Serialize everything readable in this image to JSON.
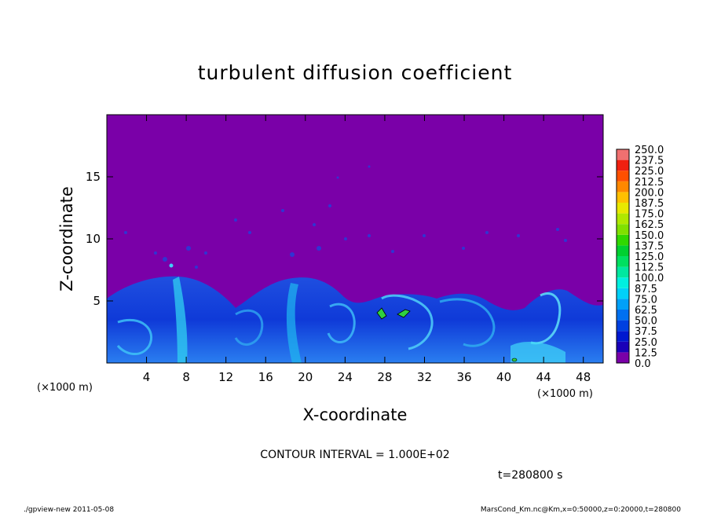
{
  "chart_data": {
    "type": "heatmap",
    "title": "turbulent diffusion coefficient",
    "xlabel": "X-coordinate",
    "ylabel": "Z-coordinate",
    "x_unit": "(×1000 m)",
    "y_unit": "(×1000 m)",
    "xlim": [
      0,
      50
    ],
    "ylim": [
      0,
      20
    ],
    "x_ticks": [
      4,
      8,
      12,
      16,
      20,
      24,
      28,
      32,
      36,
      40,
      44,
      48
    ],
    "y_ticks": [
      5,
      10,
      15
    ],
    "colorbar": {
      "levels": [
        "0.0",
        "12.5",
        "25.0",
        "37.5",
        "50.0",
        "62.5",
        "75.0",
        "87.5",
        "100.0",
        "112.5",
        "125.0",
        "137.5",
        "150.0",
        "162.5",
        "175.0",
        "187.5",
        "200.0",
        "212.5",
        "225.0",
        "237.5",
        "250.0"
      ],
      "colors": [
        "#7a00a8",
        "#1a00b8",
        "#0018d0",
        "#0040e0",
        "#0070f0",
        "#00a0f8",
        "#00d0f8",
        "#00f0e0",
        "#00e8a0",
        "#00e060",
        "#00d030",
        "#30d800",
        "#80e000",
        "#b0e800",
        "#e8e800",
        "#ffc000",
        "#ff8800",
        "#ff5000",
        "#f02010",
        "#f07070"
      ]
    },
    "contour_interval": "CONTOUR INTERVAL = 1.000E+02",
    "time_label": "t=280800 s"
  },
  "footer": {
    "left": "./gpview-new   2011-05-08",
    "right": "MarsCond_Km.nc@Km,x=0:50000,z=0:20000,t=280800"
  }
}
